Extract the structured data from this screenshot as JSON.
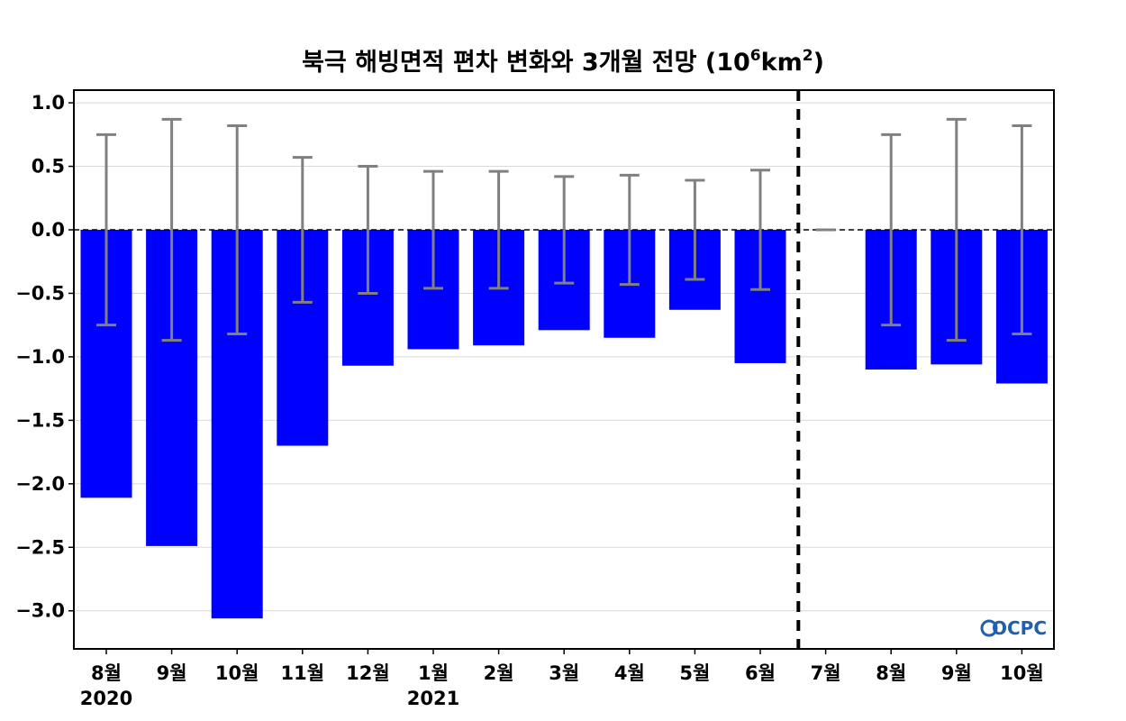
{
  "chart_data": {
    "type": "bar",
    "title": "북극 해빙면적 편차 변화와 3개월 전망 (10",
    "title_sup1": "6",
    "title_mid": "km",
    "title_sup2": "2",
    "title_end": ")",
    "xlabel": "",
    "ylabel": "",
    "ylim": [
      -3.3,
      1.1
    ],
    "yticks": [
      1.0,
      0.5,
      0.0,
      -0.5,
      -1.0,
      -1.5,
      -2.0,
      -2.5,
      -3.0
    ],
    "ytick_labels": [
      "1.0",
      "0.5",
      "0.0",
      "−0.5",
      "−1.0",
      "−1.5",
      "−2.0",
      "−2.5",
      "−3.0"
    ],
    "grid": true,
    "categories": [
      "8월",
      "9월",
      "10월",
      "11월",
      "12월",
      "1월",
      "2월",
      "3월",
      "4월",
      "5월",
      "6월",
      "7월",
      "8월",
      "9월",
      "10월"
    ],
    "year_labels": [
      {
        "index": 0,
        "label": "2020"
      },
      {
        "index": 5,
        "label": "2021"
      }
    ],
    "series": [
      {
        "values": [
          -2.11,
          -2.49,
          -3.06,
          -1.7,
          -1.07,
          -0.94,
          -0.91,
          -0.79,
          -0.85,
          -0.63,
          -1.05,
          0.0,
          -1.1,
          -1.06,
          -1.21
        ],
        "color": "#0000ff"
      }
    ],
    "error_bars": [
      0.75,
      0.87,
      0.82,
      0.57,
      0.5,
      0.46,
      0.46,
      0.42,
      0.43,
      0.39,
      0.47,
      0.0,
      0.75,
      0.87,
      0.82
    ],
    "error_bar_color": "#808080",
    "forecast_divider_index": 11,
    "logo": "OCPC"
  }
}
